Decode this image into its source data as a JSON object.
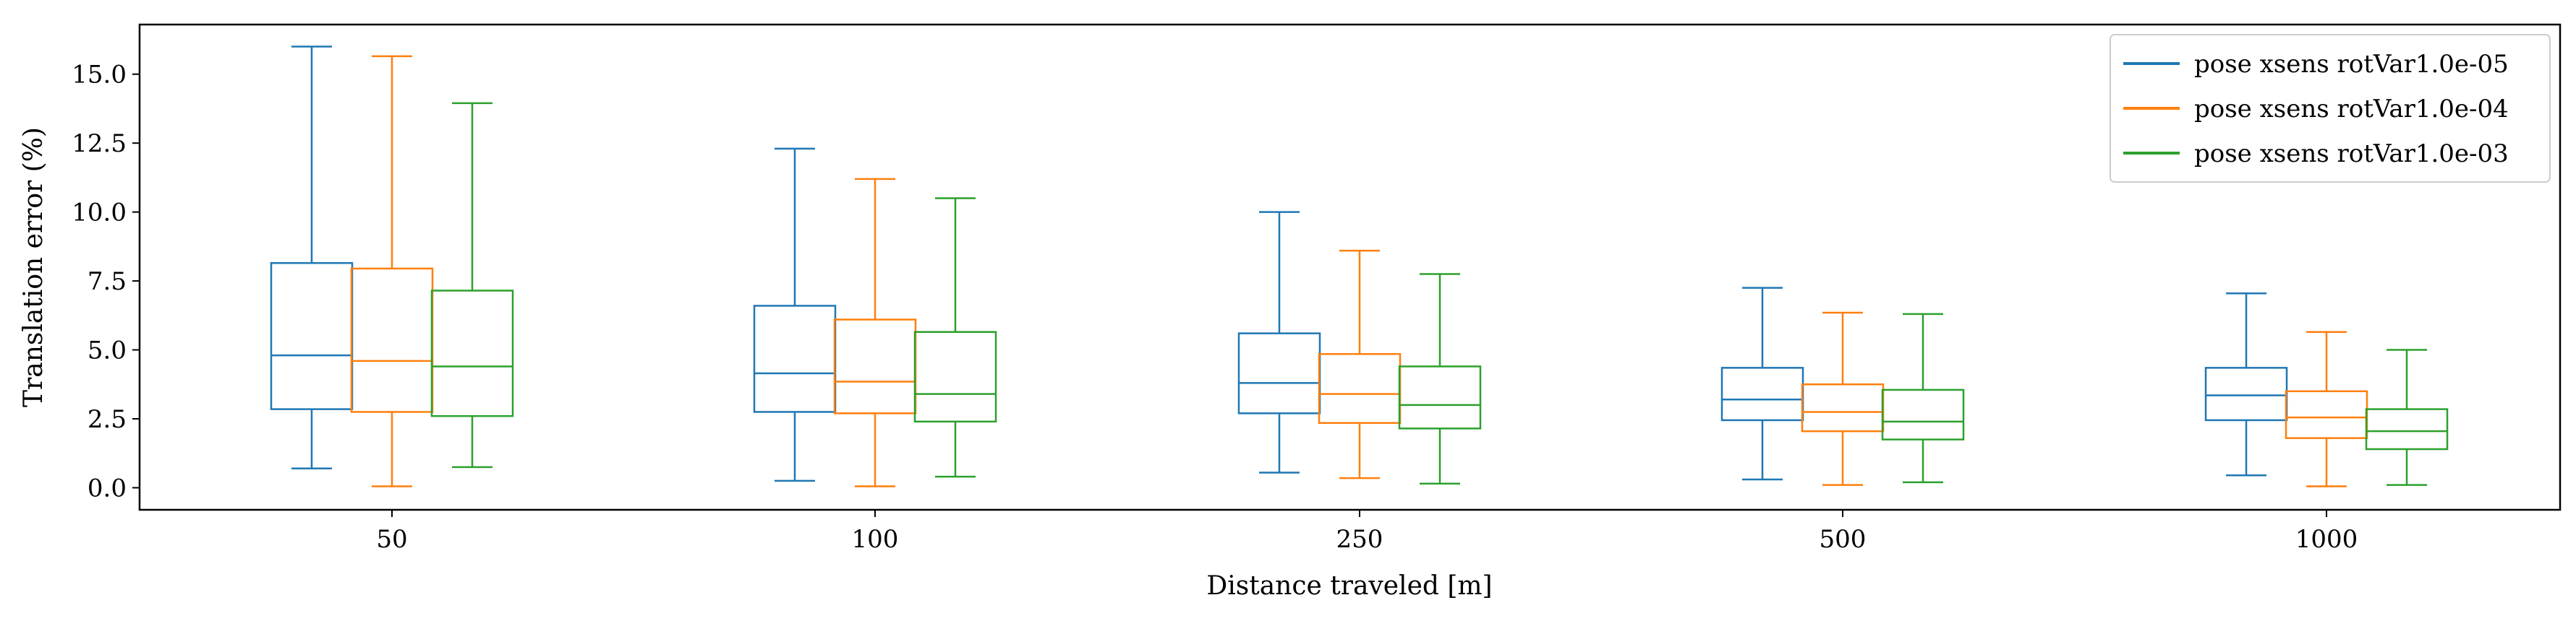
{
  "chart_data": {
    "type": "box",
    "xlabel": "Distance traveled [m]",
    "ylabel": "Translation error (%)",
    "categories": [
      "50",
      "100",
      "250",
      "500",
      "1000"
    ],
    "ylim": [
      -0.8,
      16.8
    ],
    "yticks": [
      {
        "value": 0.0,
        "label": "0.0"
      },
      {
        "value": 2.5,
        "label": "2.5"
      },
      {
        "value": 5.0,
        "label": "5.0"
      },
      {
        "value": 7.5,
        "label": "7.5"
      },
      {
        "value": 10.0,
        "label": "10.0"
      },
      {
        "value": 12.5,
        "label": "12.5"
      },
      {
        "value": 15.0,
        "label": "15.0"
      }
    ],
    "grid": false,
    "legend_position": "top-right",
    "series": [
      {
        "name": "pose xsens rotVar1.0e-05",
        "color": "#1f77b4",
        "boxes": [
          {
            "whislo": 0.7,
            "q1": 2.85,
            "med": 4.8,
            "q3": 8.15,
            "whishi": 16.0
          },
          {
            "whislo": 0.25,
            "q1": 2.75,
            "med": 4.15,
            "q3": 6.6,
            "whishi": 12.3
          },
          {
            "whislo": 0.55,
            "q1": 2.7,
            "med": 3.8,
            "q3": 5.6,
            "whishi": 10.0
          },
          {
            "whislo": 0.3,
            "q1": 2.45,
            "med": 3.2,
            "q3": 4.35,
            "whishi": 7.25
          },
          {
            "whislo": 0.45,
            "q1": 2.45,
            "med": 3.35,
            "q3": 4.35,
            "whishi": 7.05
          }
        ]
      },
      {
        "name": "pose xsens rotVar1.0e-04",
        "color": "#ff7f0e",
        "boxes": [
          {
            "whislo": 0.05,
            "q1": 2.75,
            "med": 4.6,
            "q3": 7.95,
            "whishi": 15.65
          },
          {
            "whislo": 0.05,
            "q1": 2.7,
            "med": 3.85,
            "q3": 6.1,
            "whishi": 11.2
          },
          {
            "whislo": 0.35,
            "q1": 2.35,
            "med": 3.4,
            "q3": 4.85,
            "whishi": 8.6
          },
          {
            "whislo": 0.1,
            "q1": 2.05,
            "med": 2.75,
            "q3": 3.75,
            "whishi": 6.35
          },
          {
            "whislo": 0.05,
            "q1": 1.8,
            "med": 2.55,
            "q3": 3.5,
            "whishi": 5.65
          }
        ]
      },
      {
        "name": "pose xsens rotVar1.0e-03",
        "color": "#2ca02c",
        "boxes": [
          {
            "whislo": 0.75,
            "q1": 2.6,
            "med": 4.4,
            "q3": 7.15,
            "whishi": 13.95
          },
          {
            "whislo": 0.4,
            "q1": 2.4,
            "med": 3.4,
            "q3": 5.65,
            "whishi": 10.5
          },
          {
            "whislo": 0.15,
            "q1": 2.15,
            "med": 3.0,
            "q3": 4.4,
            "whishi": 7.75
          },
          {
            "whislo": 0.2,
            "q1": 1.75,
            "med": 2.4,
            "q3": 3.55,
            "whishi": 6.3
          },
          {
            "whislo": 0.1,
            "q1": 1.4,
            "med": 2.05,
            "q3": 2.85,
            "whishi": 5.0
          }
        ]
      }
    ]
  }
}
